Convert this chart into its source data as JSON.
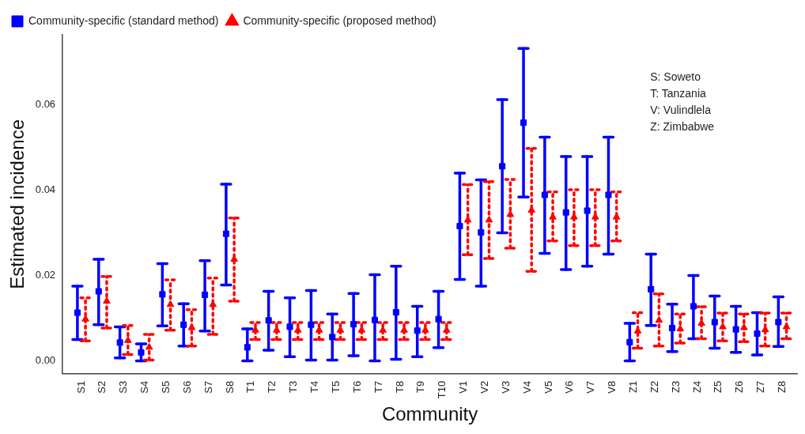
{
  "chart_data": {
    "type": "scatter",
    "xlabel": "Community",
    "ylabel": "Estimated incidence",
    "categories": [
      "S1",
      "S2",
      "S3",
      "S4",
      "S5",
      "S6",
      "S7",
      "S8",
      "T1",
      "T2",
      "T3",
      "T4",
      "T5",
      "T6",
      "T7",
      "T8",
      "T9",
      "T10",
      "V1",
      "V2",
      "V3",
      "V4",
      "V5",
      "V6",
      "V7",
      "V8",
      "Z1",
      "Z2",
      "Z3",
      "Z4",
      "Z5",
      "Z6",
      "Z7",
      "Z8"
    ],
    "series": [
      {
        "name": "Community-specific (standard method)",
        "color": "#0000ff",
        "marker": "square",
        "line_style": "solid",
        "values": [
          0.0113,
          0.0163,
          0.0043,
          0.002,
          0.0156,
          0.0085,
          0.0155,
          0.0298,
          0.0032,
          0.0095,
          0.008,
          0.0085,
          0.0056,
          0.0086,
          0.0096,
          0.0114,
          0.0071,
          0.0098,
          0.0316,
          0.0301,
          0.0456,
          0.0558,
          0.0389,
          0.0348,
          0.0352,
          0.0389,
          0.0044,
          0.0168,
          0.0077,
          0.0128,
          0.0091,
          0.0074,
          0.0064,
          0.0091
        ],
        "errors": [
          [
            0.005,
            0.0175
          ],
          [
            0.0085,
            0.0238
          ],
          [
            0.0007,
            0.008
          ],
          [
            0,
            0.004
          ],
          [
            0.0082,
            0.0228
          ],
          [
            0.0035,
            0.0134
          ],
          [
            0.007,
            0.0235
          ],
          [
            0.0178,
            0.0414
          ],
          [
            0,
            0.0075
          ],
          [
            0.0025,
            0.0163
          ],
          [
            0.001,
            0.0148
          ],
          [
            0.0002,
            0.0165
          ],
          [
            0.0002,
            0.011
          ],
          [
            0.0012,
            0.0158
          ],
          [
            0,
            0.0202
          ],
          [
            0.0004,
            0.0222
          ],
          [
            0.001,
            0.0128
          ],
          [
            0.0031,
            0.0163
          ],
          [
            0.0191,
            0.044
          ],
          [
            0.0175,
            0.0424
          ],
          [
            0.03,
            0.0612
          ],
          [
            0.0384,
            0.0732
          ],
          [
            0.0252,
            0.0524
          ],
          [
            0.0214,
            0.0479
          ],
          [
            0.0222,
            0.0479
          ],
          [
            0.025,
            0.0524
          ],
          [
            0,
            0.0088
          ],
          [
            0.0083,
            0.025
          ],
          [
            0.0022,
            0.0133
          ],
          [
            0.0052,
            0.02
          ],
          [
            0.003,
            0.0152
          ],
          [
            0.002,
            0.0128
          ],
          [
            0.0014,
            0.0113
          ],
          [
            0.0034,
            0.015
          ]
        ]
      },
      {
        "name": "Community-specific (proposed method)",
        "color": "#ff0000",
        "marker": "triangle",
        "line_style": "dotted",
        "values": [
          0.0098,
          0.014,
          0.0048,
          0.0032,
          0.0132,
          0.0078,
          0.0132,
          0.0238,
          0.0072,
          0.0072,
          0.0072,
          0.0072,
          0.0072,
          0.0072,
          0.0072,
          0.0072,
          0.0072,
          0.0072,
          0.033,
          0.033,
          0.0343,
          0.0353,
          0.0337,
          0.0337,
          0.0337,
          0.0337,
          0.007,
          0.0095,
          0.0075,
          0.0088,
          0.008,
          0.0078,
          0.0073,
          0.008
        ],
        "errors": [
          [
            0.0047,
            0.0148
          ],
          [
            0.0077,
            0.0198
          ],
          [
            0.0015,
            0.0083
          ],
          [
            0.0002,
            0.0062
          ],
          [
            0.0072,
            0.019
          ],
          [
            0.0035,
            0.012
          ],
          [
            0.0062,
            0.0194
          ],
          [
            0.014,
            0.0335
          ],
          [
            0.005,
            0.009
          ],
          [
            0.005,
            0.009
          ],
          [
            0.005,
            0.009
          ],
          [
            0.005,
            0.009
          ],
          [
            0.005,
            0.009
          ],
          [
            0.005,
            0.009
          ],
          [
            0.005,
            0.009
          ],
          [
            0.005,
            0.009
          ],
          [
            0.005,
            0.009
          ],
          [
            0.005,
            0.009
          ],
          [
            0.0249,
            0.0413
          ],
          [
            0.024,
            0.042
          ],
          [
            0.0264,
            0.0425
          ],
          [
            0.021,
            0.0498
          ],
          [
            0.0281,
            0.0396
          ],
          [
            0.027,
            0.0401
          ],
          [
            0.027,
            0.0401
          ],
          [
            0.0281,
            0.0396
          ],
          [
            0.003,
            0.0113
          ],
          [
            0.0035,
            0.0157
          ],
          [
            0.0042,
            0.011
          ],
          [
            0.0052,
            0.0127
          ],
          [
            0.0047,
            0.0112
          ],
          [
            0.0045,
            0.011
          ],
          [
            0.0035,
            0.0112
          ],
          [
            0.0052,
            0.0112
          ]
        ]
      }
    ],
    "ylim": [
      -0.003,
      0.0764
    ],
    "yticks": [
      {
        "value": 0,
        "label": "0.00"
      },
      {
        "value": 0.02,
        "label": "0.02"
      },
      {
        "value": 0.04,
        "label": "0.04"
      },
      {
        "value": 0.06,
        "label": "0.06"
      }
    ],
    "legend": "top left",
    "grid": false,
    "annotations": [
      "S: Soweto",
      "T: Tanzania",
      "V: Vulindlela",
      "Z: Zimbabwe"
    ]
  }
}
